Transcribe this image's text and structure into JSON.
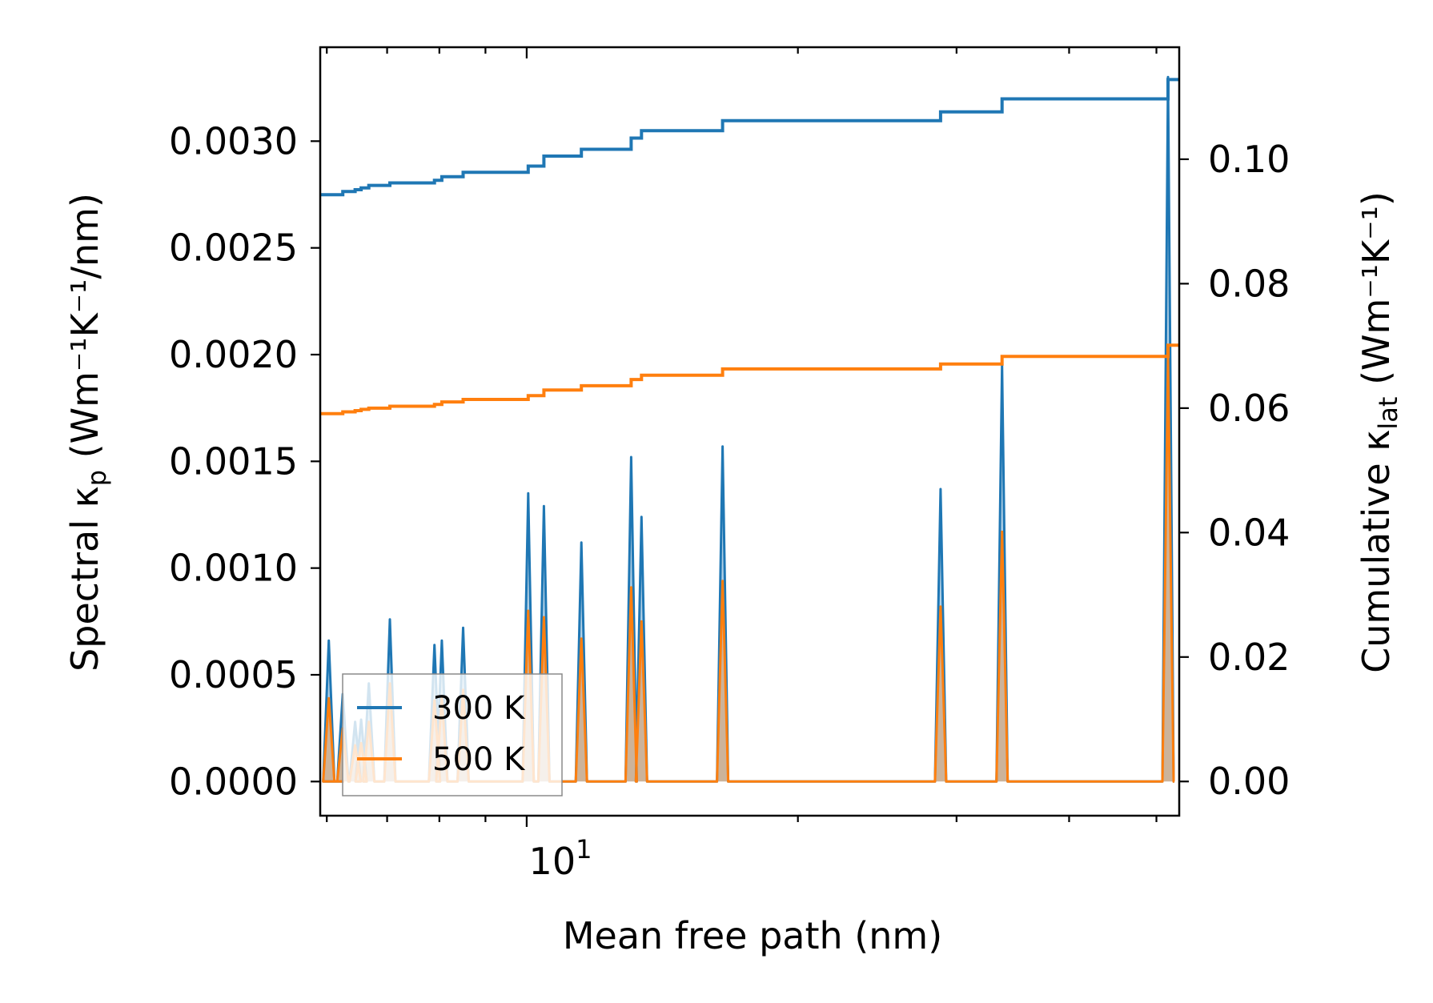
{
  "chart_data": {
    "type": "line",
    "xscale": "log",
    "xlim": [
      5.9,
      53
    ],
    "xlabel": "Mean free path (nm)",
    "x_major_tick_label": {
      "base": "10",
      "exp": "1"
    },
    "y_left": {
      "label_prefix": "Spectral κ",
      "label_sub": "p",
      "label_suffix": " (Wm⁻¹K⁻¹/nm)",
      "lim": [
        -0.00016,
        0.00344
      ],
      "ticks": [
        0.0,
        0.0005,
        0.001,
        0.0015,
        0.002,
        0.0025,
        0.003
      ],
      "tick_labels": [
        "0.0000",
        "0.0005",
        "0.0010",
        "0.0015",
        "0.0020",
        "0.0025",
        "0.0030"
      ]
    },
    "y_right": {
      "label_prefix": "Cumulative κ",
      "label_sub": "lat",
      "label_suffix": " (Wm⁻¹K⁻¹)",
      "lim": [
        -0.0055,
        0.118
      ],
      "ticks": [
        0.0,
        0.02,
        0.04,
        0.06,
        0.08,
        0.1
      ],
      "tick_labels": [
        "0.00",
        "0.02",
        "0.04",
        "0.06",
        "0.08",
        "0.10"
      ]
    },
    "legend": {
      "position": "lower-left",
      "entries": [
        "300 K",
        "500 K"
      ]
    },
    "colors": {
      "300 K": "#1f77b4",
      "500 K": "#ff7f0e"
    },
    "spectral": {
      "x": [
        6.03,
        6.25,
        6.45,
        6.55,
        6.68,
        7.05,
        7.9,
        8.05,
        8.5,
        10.04,
        10.45,
        11.5,
        13.06,
        13.41,
        16.5,
        28.8,
        33.7,
        51.5
      ],
      "300 K": [
        0.00066,
        0.00041,
        0.00028,
        0.00029,
        0.00046,
        0.00076,
        0.00064,
        0.00066,
        0.00072,
        0.00135,
        0.00129,
        0.00112,
        0.00152,
        0.00124,
        0.00157,
        0.00137,
        0.00195,
        0.0033
      ],
      "500 K": [
        0.00039,
        0.00025,
        0.00017,
        0.00018,
        0.00028,
        0.00046,
        0.00038,
        0.00039,
        0.00043,
        0.0008,
        0.00077,
        0.00067,
        0.00091,
        0.00075,
        0.00094,
        0.00082,
        0.00117,
        0.00198
      ]
    },
    "cumulative": {
      "x": [
        5.9,
        6.03,
        6.25,
        6.45,
        6.55,
        6.68,
        7.05,
        7.9,
        8.05,
        8.5,
        10.04,
        10.45,
        11.5,
        13.06,
        13.41,
        16.5,
        28.8,
        33.7,
        51.5,
        53
      ],
      "300 K": [
        0.0943,
        0.0943,
        0.0948,
        0.0951,
        0.0954,
        0.0958,
        0.0962,
        0.0966,
        0.0972,
        0.0979,
        0.0989,
        0.1005,
        0.1016,
        0.1034,
        0.1046,
        0.1062,
        0.1076,
        0.1097,
        0.1128,
        0.1128
      ],
      "500 K": [
        0.0591,
        0.0591,
        0.0594,
        0.0596,
        0.0598,
        0.06,
        0.0603,
        0.0606,
        0.061,
        0.0614,
        0.062,
        0.0629,
        0.0636,
        0.0646,
        0.0653,
        0.0663,
        0.0671,
        0.0683,
        0.0701,
        0.0701
      ]
    }
  }
}
